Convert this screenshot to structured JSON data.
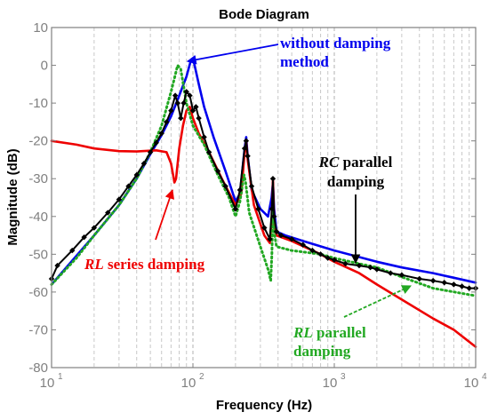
{
  "chart_data": {
    "type": "line",
    "title": "Bode Diagram",
    "xlabel": "Frequency  (Hz)",
    "ylabel": "Magnitude (dB)",
    "x_scale": "log",
    "xlim": [
      10,
      10000
    ],
    "ylim": [
      -80,
      10
    ],
    "x_ticks": [
      {
        "base": "10",
        "exp": "1"
      },
      {
        "base": "10",
        "exp": "2"
      },
      {
        "base": "10",
        "exp": "3"
      },
      {
        "base": "10",
        "exp": "4"
      }
    ],
    "y_ticks": [
      "10",
      "0",
      "-10",
      "-20",
      "-30",
      "-40",
      "-50",
      "-60",
      "-70",
      "-80"
    ],
    "y_tick_values": [
      10,
      0,
      -10,
      -20,
      -30,
      -40,
      -50,
      -60,
      -70,
      -80
    ],
    "grid": "dashed, x major and minor",
    "series": [
      {
        "name": "without damping method",
        "color": "#0000ee",
        "style": "solid",
        "points": [
          [
            10,
            -58
          ],
          [
            20,
            -45
          ],
          [
            30,
            -37
          ],
          [
            40,
            -30
          ],
          [
            50,
            -23.5
          ],
          [
            60,
            -18.5
          ],
          [
            70,
            -13.5
          ],
          [
            80,
            -8
          ],
          [
            90,
            -3
          ],
          [
            97,
            1.5
          ],
          [
            102,
            0.5
          ],
          [
            110,
            -5
          ],
          [
            120,
            -11
          ],
          [
            140,
            -19
          ],
          [
            170,
            -28
          ],
          [
            200,
            -36
          ],
          [
            215,
            -34
          ],
          [
            232,
            -22
          ],
          [
            238,
            -19
          ],
          [
            244,
            -24
          ],
          [
            260,
            -33
          ],
          [
            300,
            -38
          ],
          [
            340,
            -40
          ],
          [
            360,
            -35
          ],
          [
            368,
            -31
          ],
          [
            375,
            -38
          ],
          [
            390,
            -44
          ],
          [
            450,
            -45
          ],
          [
            600,
            -46.5
          ],
          [
            1000,
            -49
          ],
          [
            2000,
            -52
          ],
          [
            3000,
            -53.5
          ],
          [
            5000,
            -55
          ],
          [
            10000,
            -57.5
          ]
        ]
      },
      {
        "name": "RL series damping",
        "color": "#ee0000",
        "style": "solid",
        "points": [
          [
            10,
            -20
          ],
          [
            15,
            -21
          ],
          [
            20,
            -22
          ],
          [
            30,
            -22.7
          ],
          [
            40,
            -22.8
          ],
          [
            55,
            -22.5
          ],
          [
            65,
            -23
          ],
          [
            70,
            -26
          ],
          [
            74,
            -31
          ],
          [
            76,
            -30
          ],
          [
            80,
            -22
          ],
          [
            85,
            -16
          ],
          [
            90,
            -12
          ],
          [
            95,
            -11
          ],
          [
            100,
            -14
          ],
          [
            110,
            -18
          ],
          [
            130,
            -23
          ],
          [
            160,
            -30
          ],
          [
            200,
            -37
          ],
          [
            220,
            -34
          ],
          [
            232,
            -23
          ],
          [
            238,
            -20
          ],
          [
            244,
            -25
          ],
          [
            270,
            -37
          ],
          [
            320,
            -45
          ],
          [
            350,
            -47
          ],
          [
            362,
            -40
          ],
          [
            368,
            -30
          ],
          [
            375,
            -42
          ],
          [
            390,
            -45
          ],
          [
            500,
            -46.5
          ],
          [
            800,
            -50
          ],
          [
            1000,
            -52
          ],
          [
            1500,
            -55
          ],
          [
            2000,
            -58
          ],
          [
            3000,
            -62
          ],
          [
            5000,
            -67
          ],
          [
            7000,
            -70
          ],
          [
            10000,
            -74.5
          ]
        ]
      },
      {
        "name": "RC parallel damping",
        "color": "#000000",
        "style": "solid-diamond",
        "points": [
          [
            10,
            -56.5
          ],
          [
            11,
            -53
          ],
          [
            14,
            -49
          ],
          [
            17,
            -45.5
          ],
          [
            20,
            -43
          ],
          [
            25,
            -39
          ],
          [
            30,
            -35.5
          ],
          [
            35,
            -32
          ],
          [
            40,
            -29
          ],
          [
            45,
            -26
          ],
          [
            50,
            -23
          ],
          [
            55,
            -20.5
          ],
          [
            60,
            -18
          ],
          [
            65,
            -15
          ],
          [
            70,
            -12
          ],
          [
            75,
            -8
          ],
          [
            78,
            -10
          ],
          [
            82,
            -14
          ],
          [
            86,
            -10
          ],
          [
            90,
            -7
          ],
          [
            95,
            -8
          ],
          [
            100,
            -12
          ],
          [
            105,
            -11
          ],
          [
            110,
            -14
          ],
          [
            120,
            -19
          ],
          [
            130,
            -23
          ],
          [
            150,
            -28
          ],
          [
            170,
            -32
          ],
          [
            200,
            -38
          ],
          [
            215,
            -33
          ],
          [
            232,
            -22
          ],
          [
            238,
            -20
          ],
          [
            244,
            -24
          ],
          [
            260,
            -32
          ],
          [
            290,
            -38
          ],
          [
            320,
            -43
          ],
          [
            350,
            -46
          ],
          [
            362,
            -38
          ],
          [
            368,
            -30
          ],
          [
            375,
            -40
          ],
          [
            390,
            -44
          ],
          [
            420,
            -45
          ],
          [
            500,
            -46
          ],
          [
            600,
            -47.5
          ],
          [
            700,
            -49
          ],
          [
            800,
            -50
          ],
          [
            900,
            -51
          ],
          [
            1000,
            -51.5
          ],
          [
            1200,
            -52.5
          ],
          [
            1500,
            -53
          ],
          [
            1800,
            -53.5
          ],
          [
            2000,
            -54
          ],
          [
            2500,
            -55
          ],
          [
            3000,
            -55.5
          ],
          [
            4000,
            -56.5
          ],
          [
            5000,
            -57
          ],
          [
            6000,
            -57.5
          ],
          [
            7000,
            -58
          ],
          [
            8000,
            -58.5
          ],
          [
            9000,
            -59
          ],
          [
            10000,
            -59
          ]
        ]
      },
      {
        "name": "RL parallel damping",
        "color": "#22a822",
        "style": "dotted",
        "points": [
          [
            10,
            -58
          ],
          [
            15,
            -51
          ],
          [
            20,
            -45
          ],
          [
            30,
            -37
          ],
          [
            40,
            -30
          ],
          [
            50,
            -23
          ],
          [
            60,
            -16
          ],
          [
            70,
            -7
          ],
          [
            78,
            0
          ],
          [
            82,
            -1
          ],
          [
            90,
            -10
          ],
          [
            100,
            -16
          ],
          [
            120,
            -21
          ],
          [
            150,
            -29
          ],
          [
            180,
            -35
          ],
          [
            200,
            -40
          ],
          [
            215,
            -36
          ],
          [
            230,
            -29
          ],
          [
            236,
            -31
          ],
          [
            250,
            -39
          ],
          [
            300,
            -48
          ],
          [
            340,
            -54
          ],
          [
            355,
            -57
          ],
          [
            362,
            -50
          ],
          [
            368,
            -38
          ],
          [
            375,
            -44
          ],
          [
            390,
            -48
          ],
          [
            500,
            -49
          ],
          [
            800,
            -50
          ],
          [
            1000,
            -51
          ],
          [
            1500,
            -52.5
          ],
          [
            2000,
            -53.5
          ],
          [
            3000,
            -56
          ],
          [
            5000,
            -59
          ],
          [
            10000,
            -61
          ]
        ]
      }
    ],
    "annotations": [
      {
        "lines": [
          {
            "parts": [
              "without damping"
            ]
          },
          {
            "parts": [
              "method"
            ]
          }
        ],
        "color": "#0000ee"
      },
      {
        "lines": [
          {
            "parts": [
              "RC",
              " parallel"
            ]
          },
          {
            "parts": [
              "damping"
            ]
          }
        ],
        "color": "#000000"
      },
      {
        "lines": [
          {
            "parts": [
              "RL",
              " series damping"
            ]
          }
        ],
        "color": "#ee0000"
      },
      {
        "lines": [
          {
            "parts": [
              "RL",
              " parallel"
            ]
          },
          {
            "parts": [
              "damping"
            ]
          }
        ],
        "color": "#22a822"
      }
    ]
  }
}
